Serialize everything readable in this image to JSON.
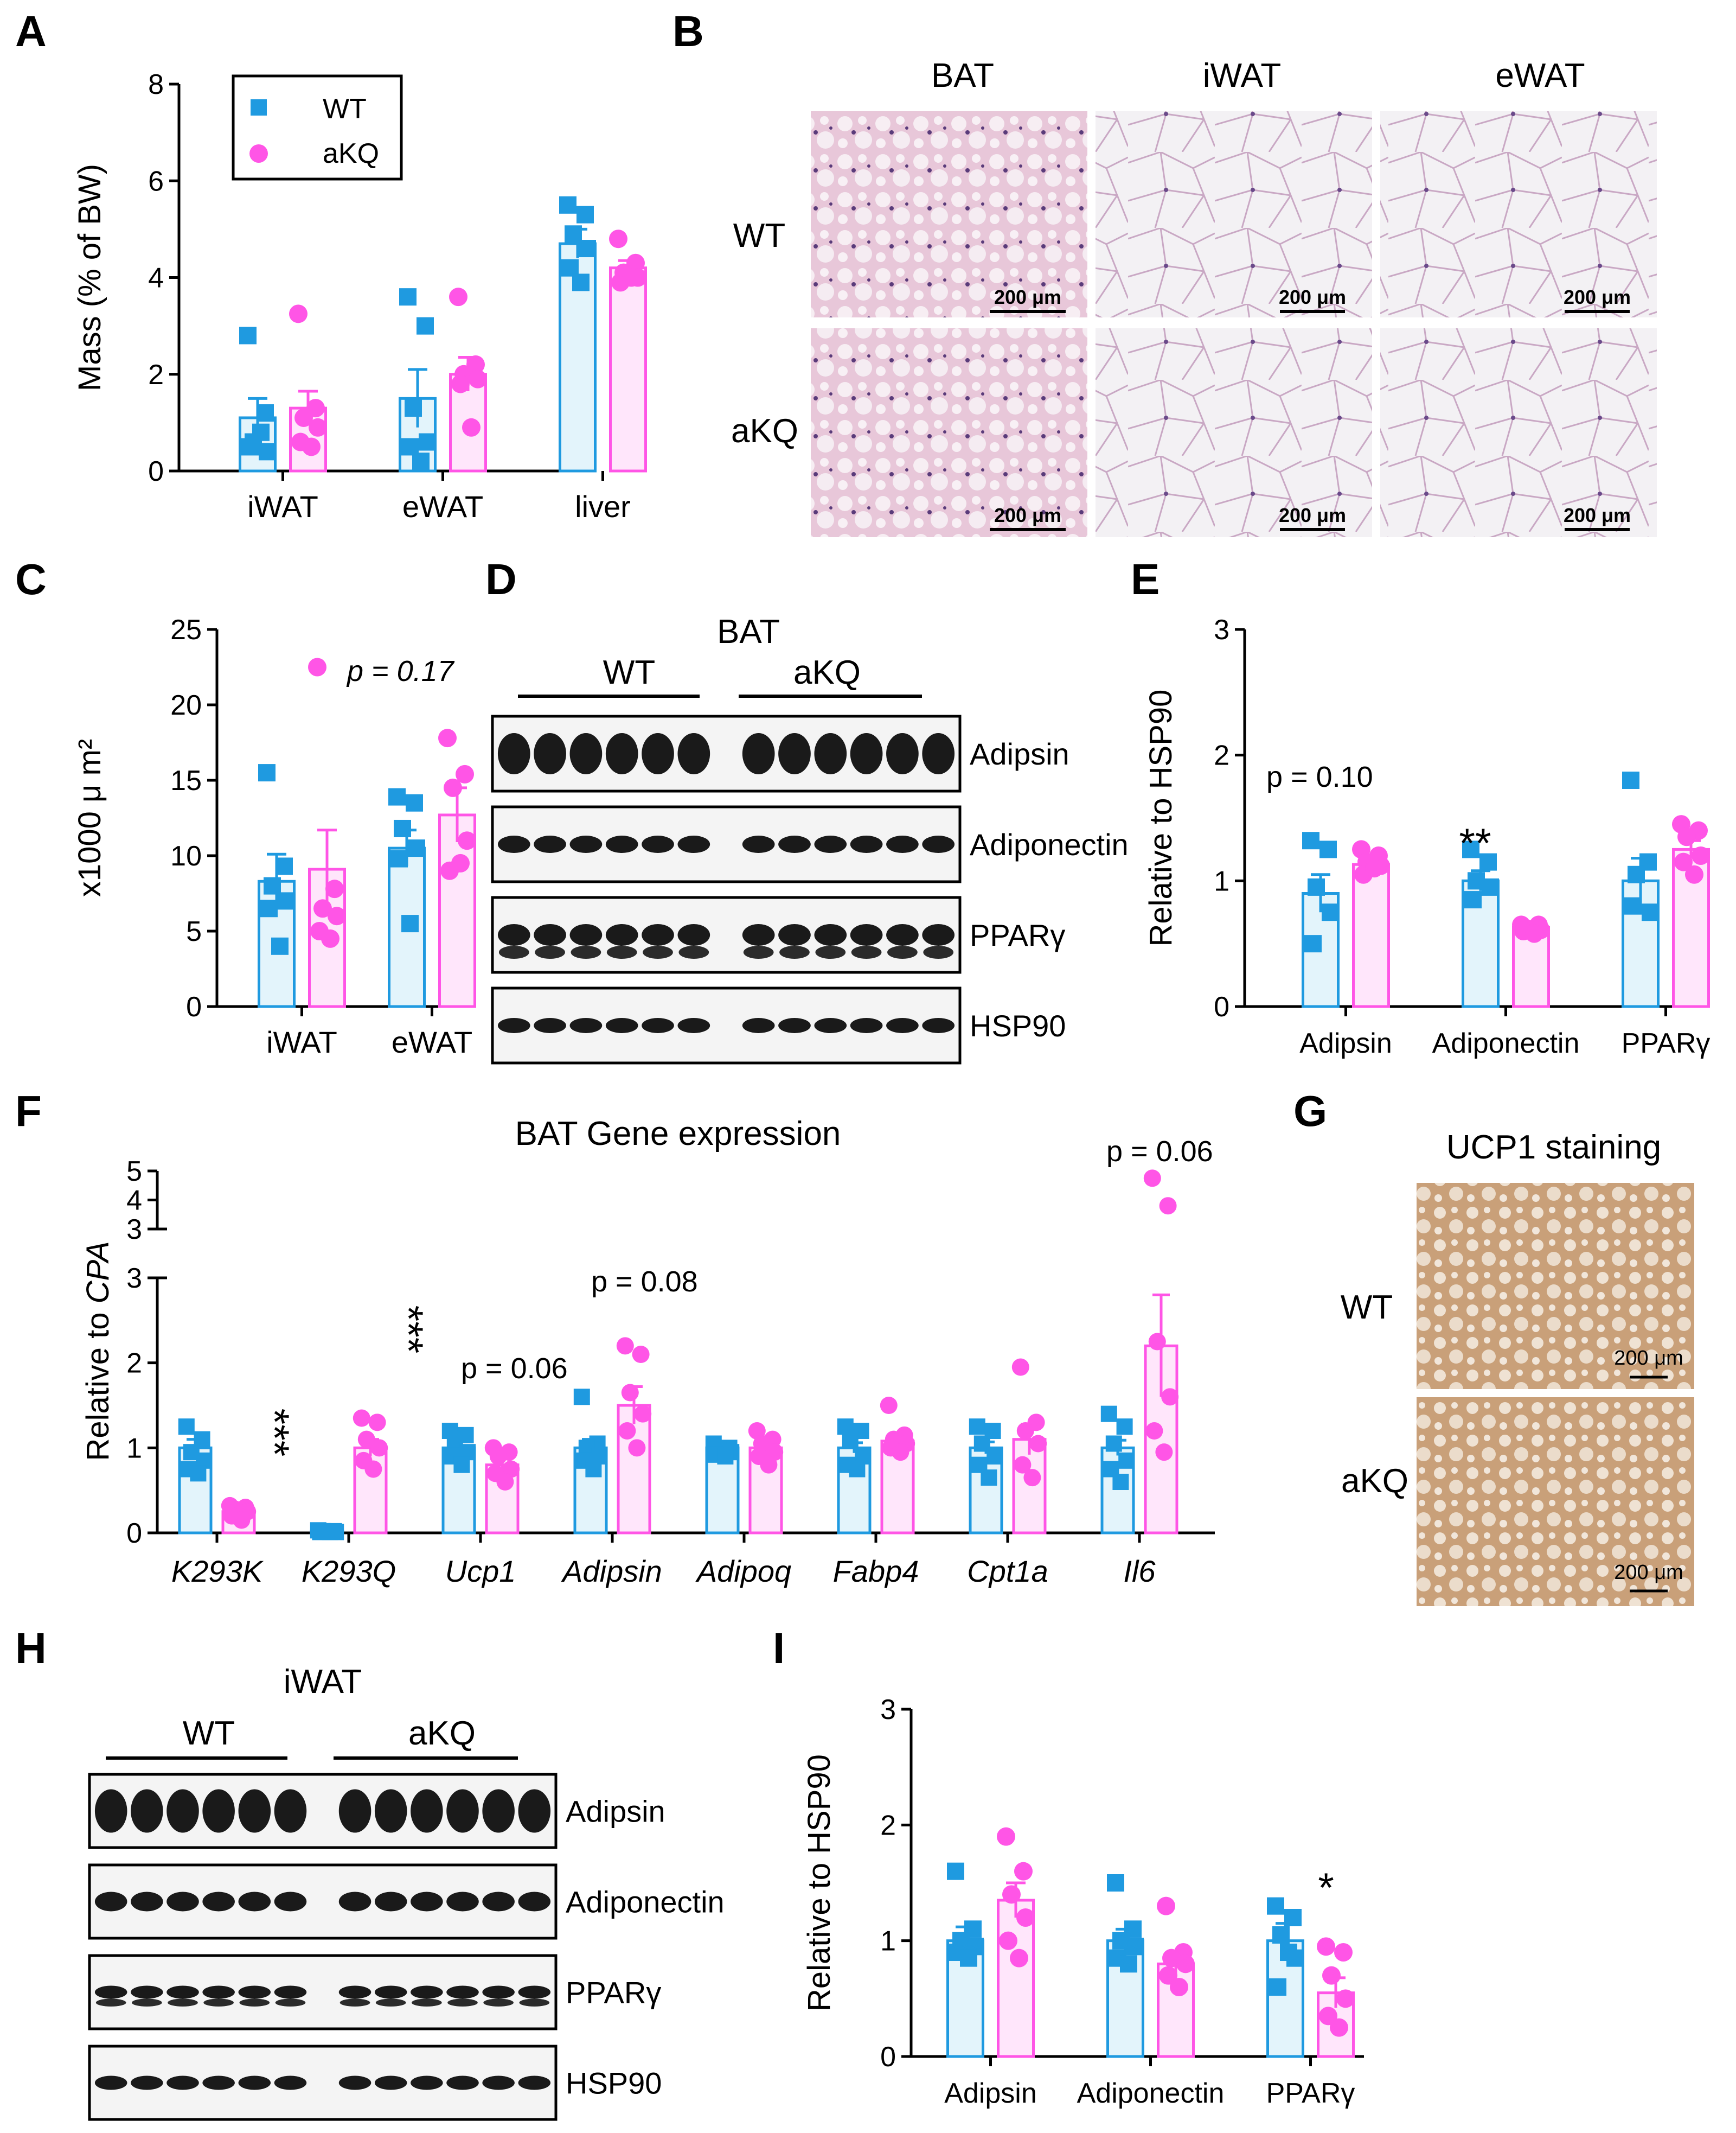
{
  "colors": {
    "wt": "#1f9ae0",
    "wt_fill": "#e3f4fb",
    "akq": "#ff55e6",
    "akq_fill": "#ffe6fb",
    "axis": "#000000"
  },
  "panels": {
    "A": {
      "letter": "A",
      "legend": [
        "WT",
        "aKQ"
      ]
    },
    "B": {
      "letter": "B",
      "columns": [
        "BAT",
        "iWAT",
        "eWAT"
      ],
      "rows": [
        "WT",
        "aKQ"
      ],
      "scalebar": "200 μm"
    },
    "C": {
      "letter": "C",
      "annotation": "p = 0.17",
      "ylabel_text": "x1000 μ m²"
    },
    "D": {
      "letter": "D",
      "title": "BAT",
      "groups": [
        "WT",
        "aKQ"
      ],
      "blots": [
        "Adipsin",
        "Adiponectin",
        "PPARγ",
        "HSP90"
      ]
    },
    "E": {
      "letter": "E",
      "annotations": [
        "p = 0.10"
      ],
      "significance": [
        "**"
      ]
    },
    "F": {
      "letter": "F",
      "title": "BAT Gene expression",
      "annotations": [
        "p = 0.06",
        "p = 0.08",
        "p = 0.06"
      ],
      "significance": [
        "***",
        "***"
      ]
    },
    "G": {
      "letter": "G",
      "title": "UCP1 staining",
      "rows": [
        "WT",
        "aKQ"
      ],
      "scalebar": "200 μm"
    },
    "H": {
      "letter": "H",
      "title": "iWAT",
      "groups": [
        "WT",
        "aKQ"
      ],
      "blots": [
        "Adipsin",
        "Adiponectin",
        "PPARγ",
        "HSP90"
      ]
    },
    "I": {
      "letter": "I",
      "significance": [
        "*"
      ]
    }
  },
  "chart_data": [
    {
      "id": "A",
      "type": "bar",
      "ylabel": "Mass (% of BW)",
      "ylim": [
        0,
        8
      ],
      "yticks": [
        0,
        2,
        4,
        6,
        8
      ],
      "categories": [
        "iWAT",
        "eWAT",
        "liver"
      ],
      "series": [
        {
          "name": "WT",
          "values": [
            1.1,
            1.5,
            4.7
          ],
          "errors": [
            0.4,
            0.6,
            0.3
          ],
          "points": [
            [
              2.8,
              1.2,
              0.6,
              0.4,
              0.5,
              0.8
            ],
            [
              3.6,
              3.0,
              1.3,
              0.6,
              0.5,
              0.2
            ],
            [
              5.5,
              5.3,
              4.9,
              4.6,
              4.2,
              3.9
            ]
          ]
        },
        {
          "name": "aKQ",
          "values": [
            1.3,
            2.0,
            4.2
          ],
          "errors": [
            0.35,
            0.35,
            0.15
          ],
          "points": [
            [
              3.25,
              1.3,
              1.1,
              0.9,
              0.6,
              0.5
            ],
            [
              3.6,
              2.2,
              2.0,
              1.9,
              1.8,
              0.9
            ],
            [
              4.8,
              4.3,
              4.1,
              4.0,
              3.9,
              4.0
            ]
          ]
        }
      ]
    },
    {
      "id": "C",
      "type": "bar",
      "ylabel": "x1000 μ m²",
      "ylim": [
        0,
        25
      ],
      "yticks": [
        0,
        5,
        10,
        15,
        20,
        25
      ],
      "categories": [
        "iWAT",
        "eWAT"
      ],
      "series": [
        {
          "name": "WT",
          "values": [
            8.3,
            10.5
          ],
          "errors": [
            1.8,
            1.2
          ],
          "points": [
            [
              15.5,
              9.3,
              8.0,
              7.0,
              6.5,
              4.0
            ],
            [
              13.9,
              13.5,
              11.8,
              10.5,
              9.8,
              5.5
            ]
          ]
        },
        {
          "name": "aKQ",
          "values": [
            9.1,
            12.7
          ],
          "errors": [
            2.6,
            1.8
          ],
          "points": [
            [
              22.5,
              7.8,
              6.5,
              6.0,
              5.0,
              4.5
            ],
            [
              17.8,
              15.4,
              14.5,
              11.0,
              9.0,
              9.5
            ]
          ]
        }
      ]
    },
    {
      "id": "E",
      "type": "bar",
      "ylabel": "Relative to HSP90",
      "ylim": [
        0,
        3
      ],
      "yticks": [
        0,
        1,
        2,
        3
      ],
      "categories": [
        "Adipsin",
        "Adiponectin",
        "PPARγ"
      ],
      "series": [
        {
          "name": "WT",
          "values": [
            0.9,
            1.0,
            1.0
          ],
          "errors": [
            0.15,
            0.08,
            0.18
          ],
          "points": [
            [
              1.32,
              1.25,
              0.95,
              0.75,
              0.5
            ],
            [
              1.25,
              1.15,
              1.0,
              0.95,
              0.85
            ],
            [
              1.8,
              1.15,
              1.05,
              0.75,
              0.8
            ]
          ]
        },
        {
          "name": "aKQ",
          "values": [
            1.13,
            0.63,
            1.25
          ],
          "errors": [
            0.05,
            0.03,
            0.07
          ],
          "points": [
            [
              1.25,
              1.2,
              1.15,
              1.12,
              1.05,
              1.1
            ],
            [
              0.65,
              0.65,
              0.62,
              0.61,
              0.6,
              0.58
            ],
            [
              1.45,
              1.4,
              1.35,
              1.2,
              1.15,
              1.05
            ]
          ]
        }
      ]
    },
    {
      "id": "F",
      "type": "bar",
      "title": "BAT Gene expression",
      "ylabel": "Relative to CPA",
      "ylim": [
        0,
        5
      ],
      "yticks_lower": [
        0,
        1,
        2,
        3
      ],
      "yticks_upper": [
        3,
        4,
        5
      ],
      "break_at": 3,
      "categories": [
        "K293K",
        "K293Q",
        "Ucp1",
        "Adipsin",
        "Adipoq",
        "Fabp4",
        "Cpt1a",
        "Il6"
      ],
      "series": [
        {
          "name": "WT",
          "values": [
            1.0,
            0.02,
            1.0,
            1.0,
            1.0,
            1.0,
            1.0,
            1.0
          ],
          "errors": [
            0.1,
            0.01,
            0.07,
            0.1,
            0.03,
            0.06,
            0.07,
            0.09
          ],
          "points": [
            [
              1.25,
              1.1,
              0.95,
              0.85,
              0.75,
              0.7
            ],
            [
              0.03,
              0.02,
              0.02,
              0.01,
              0.01,
              0.01
            ],
            [
              1.2,
              1.15,
              1.1,
              0.95,
              0.9,
              0.8
            ],
            [
              1.6,
              1.05,
              1.0,
              0.9,
              0.85,
              0.75
            ],
            [
              1.05,
              1.0,
              0.97,
              0.95,
              0.92,
              0.9
            ],
            [
              1.25,
              1.2,
              1.1,
              0.9,
              0.8,
              0.75
            ],
            [
              1.25,
              1.2,
              1.05,
              0.9,
              0.8,
              0.65
            ],
            [
              1.4,
              1.25,
              1.05,
              0.85,
              0.75,
              0.6
            ]
          ]
        },
        {
          "name": "aKQ",
          "values": [
            0.25,
            1.0,
            0.8,
            1.5,
            1.0,
            1.08,
            1.1,
            2.2
          ],
          "errors": [
            0.03,
            0.1,
            0.08,
            0.22,
            0.06,
            0.06,
            0.18,
            0.6
          ],
          "points": [
            [
              0.32,
              0.3,
              0.28,
              0.25,
              0.2,
              0.15
            ],
            [
              1.35,
              1.3,
              1.1,
              1.0,
              0.85,
              0.75
            ],
            [
              1.0,
              0.95,
              0.9,
              0.75,
              0.7,
              0.6
            ],
            [
              2.2,
              2.1,
              1.65,
              1.4,
              1.2,
              1.0
            ],
            [
              1.2,
              1.1,
              1.05,
              0.95,
              0.9,
              0.8
            ],
            [
              1.5,
              1.15,
              1.1,
              1.05,
              1.0,
              0.95
            ],
            [
              1.95,
              1.3,
              1.2,
              1.05,
              0.8,
              0.65
            ],
            [
              4.75,
              3.8,
              2.25,
              1.6,
              1.2,
              0.95
            ]
          ]
        }
      ]
    },
    {
      "id": "I",
      "type": "bar",
      "ylabel": "Relative to HSP90",
      "ylim": [
        0,
        3
      ],
      "yticks": [
        0,
        1,
        2,
        3
      ],
      "categories": [
        "Adipsin",
        "Adiponectin",
        "PPARγ"
      ],
      "series": [
        {
          "name": "WT",
          "values": [
            1.0,
            1.0,
            1.0
          ],
          "errors": [
            0.12,
            0.1,
            0.15
          ],
          "points": [
            [
              1.6,
              1.1,
              1.0,
              0.95,
              0.9,
              0.85
            ],
            [
              1.5,
              1.1,
              1.0,
              0.95,
              0.85,
              0.8
            ],
            [
              1.3,
              1.2,
              1.05,
              0.85,
              0.6,
              0.9
            ]
          ]
        },
        {
          "name": "aKQ",
          "values": [
            1.35,
            0.8,
            0.55
          ],
          "errors": [
            0.15,
            0.08,
            0.13
          ],
          "points": [
            [
              1.9,
              1.6,
              1.4,
              1.2,
              1.0,
              0.85
            ],
            [
              1.3,
              0.9,
              0.85,
              0.8,
              0.7,
              0.6
            ],
            [
              0.95,
              0.9,
              0.7,
              0.5,
              0.35,
              0.25
            ]
          ]
        }
      ]
    }
  ]
}
